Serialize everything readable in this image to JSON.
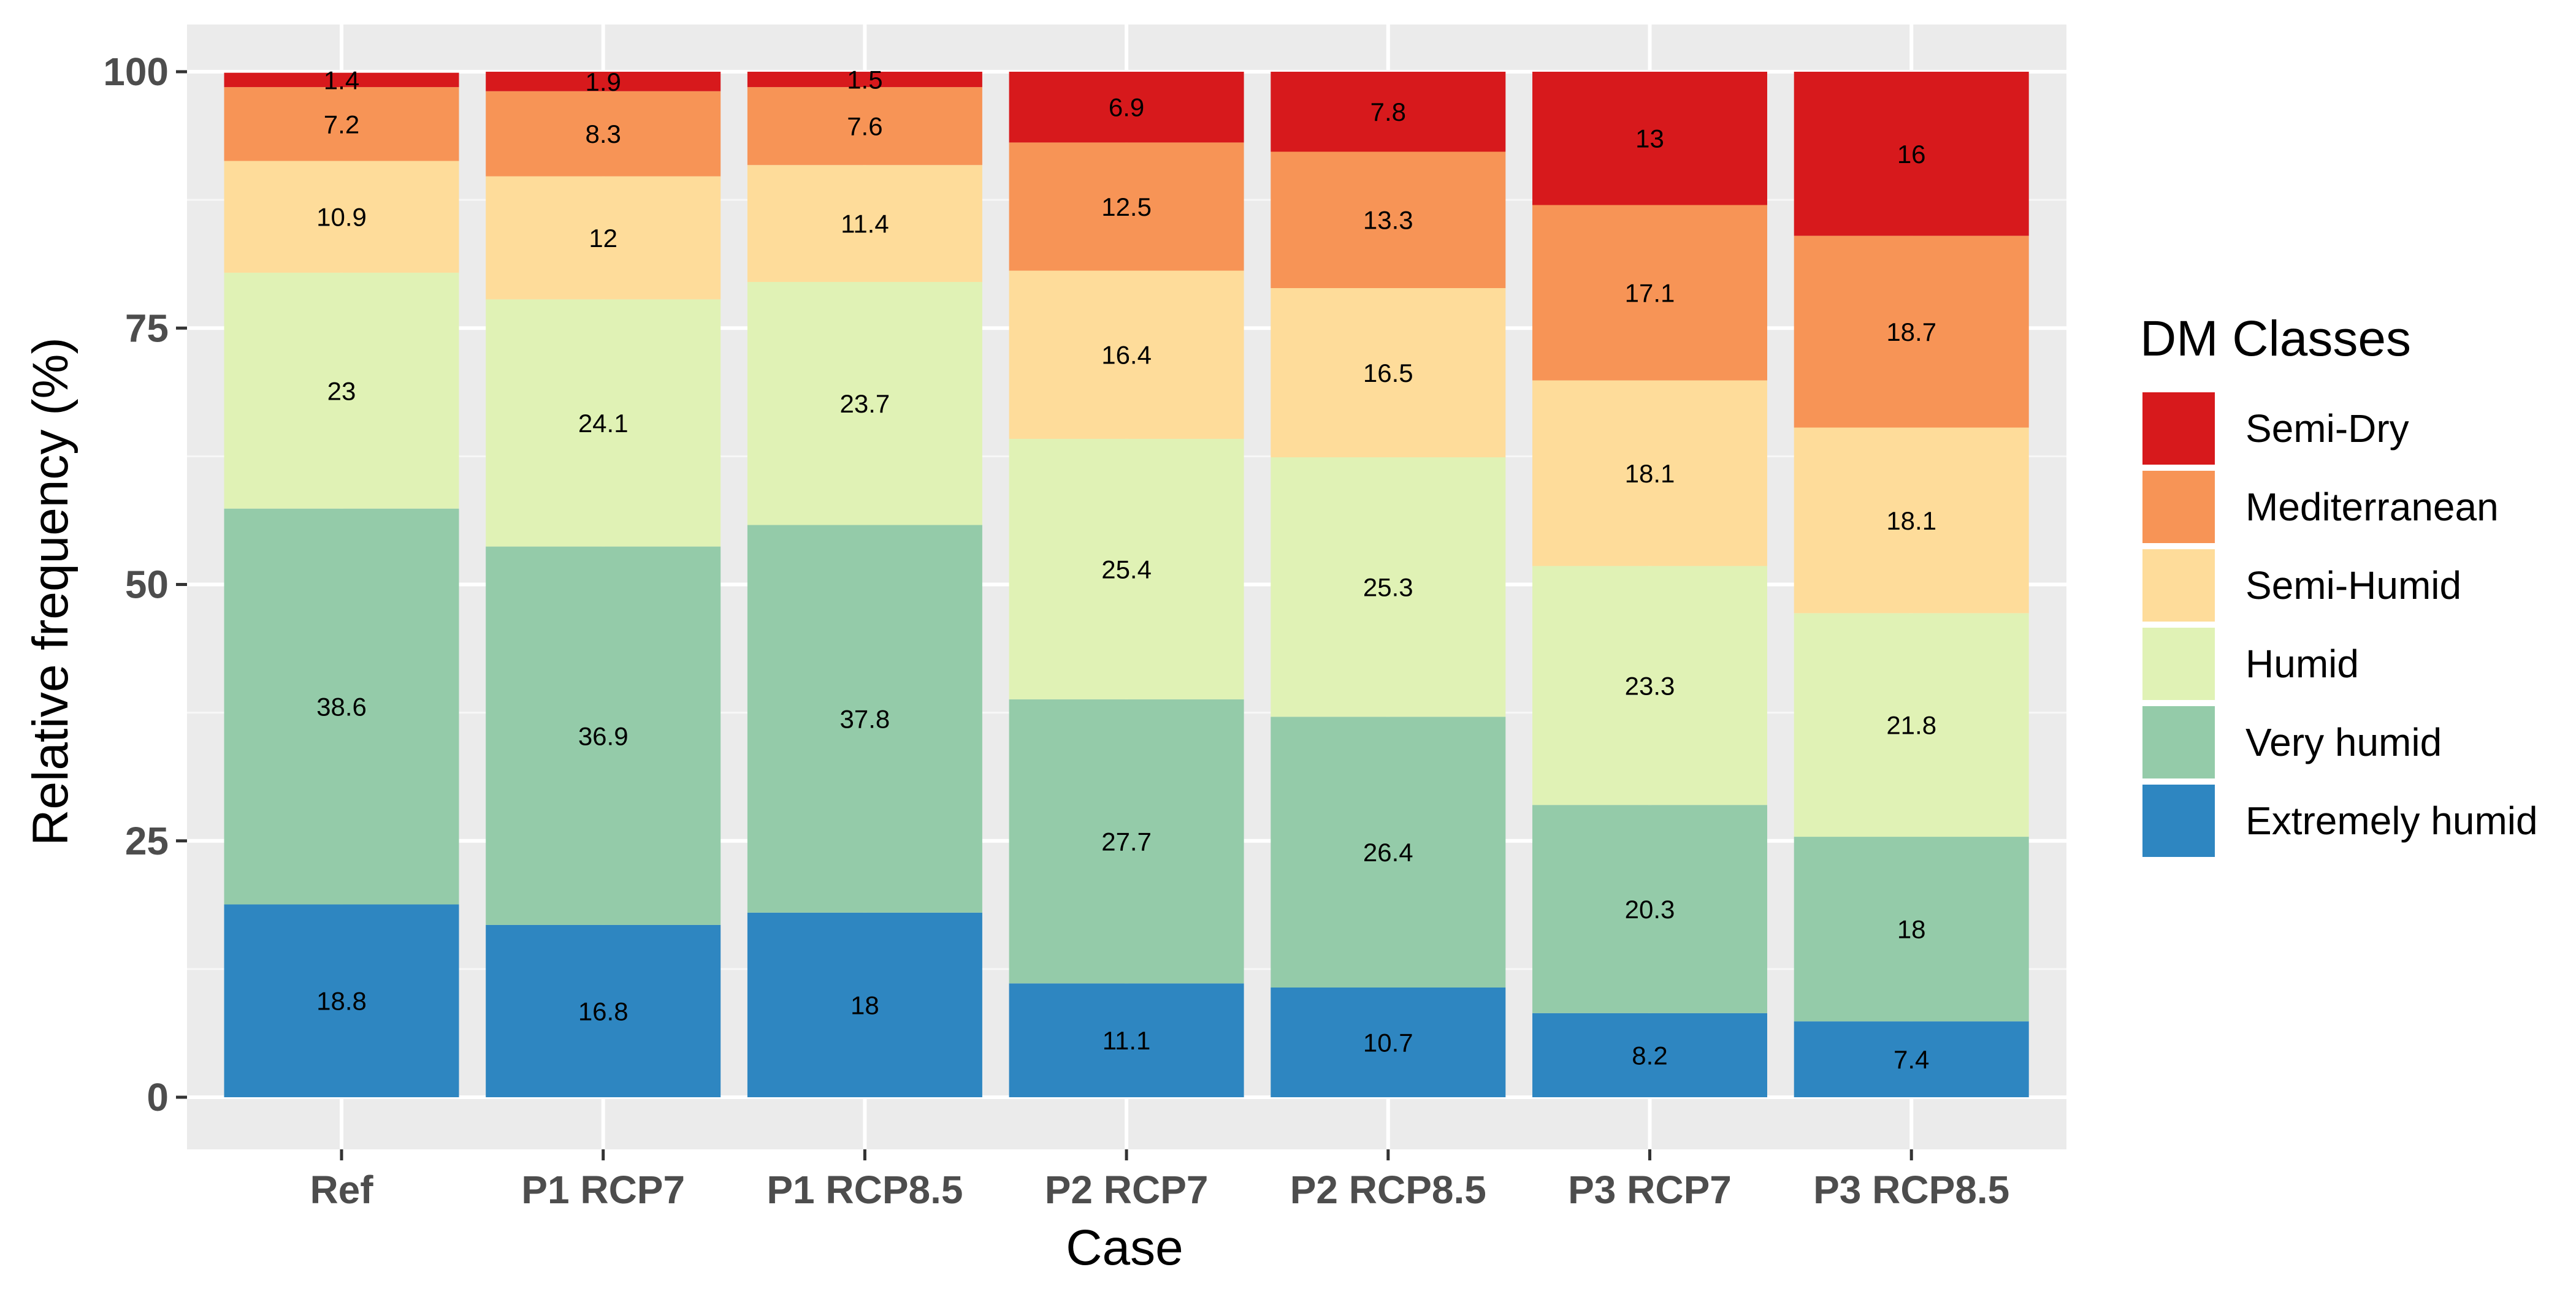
{
  "chart_data": {
    "type": "bar",
    "stacked": true,
    "title": "",
    "xlabel": "Case",
    "ylabel": "Relative frequency (%)",
    "ylim": [
      0,
      100
    ],
    "yticks": [
      0,
      25,
      50,
      75,
      100
    ],
    "grid": true,
    "categories": [
      "Ref",
      "P1 RCP7",
      "P1 RCP8.5",
      "P2 RCP7",
      "P2 RCP8.5",
      "P3 RCP7",
      "P3 RCP8.5"
    ],
    "series": [
      {
        "name": "Extremely humid",
        "color": "#2e86c1",
        "values": [
          18.8,
          16.8,
          18,
          11.1,
          10.7,
          8.2,
          7.4
        ]
      },
      {
        "name": "Very humid",
        "color": "#94cba9",
        "values": [
          38.6,
          36.9,
          37.8,
          27.7,
          26.4,
          20.3,
          18
        ]
      },
      {
        "name": "Humid",
        "color": "#e0f2b5",
        "values": [
          23,
          24.1,
          23.7,
          25.4,
          25.3,
          23.3,
          21.8
        ]
      },
      {
        "name": "Semi-Humid",
        "color": "#fedc9a",
        "values": [
          10.9,
          12,
          11.4,
          16.4,
          16.5,
          18.1,
          18.1
        ]
      },
      {
        "name": "Mediterranean",
        "color": "#f79456",
        "values": [
          7.2,
          8.3,
          7.6,
          12.5,
          13.3,
          17.1,
          18.7
        ]
      },
      {
        "name": "Semi-Dry",
        "color": "#d7191c",
        "values": [
          1.4,
          1.9,
          1.5,
          6.9,
          7.8,
          13,
          16
        ]
      }
    ],
    "legend": {
      "title": "DM Classes",
      "position": "right",
      "order": [
        "Semi-Dry",
        "Mediterranean",
        "Semi-Humid",
        "Humid",
        "Very humid",
        "Extremely humid"
      ]
    }
  }
}
